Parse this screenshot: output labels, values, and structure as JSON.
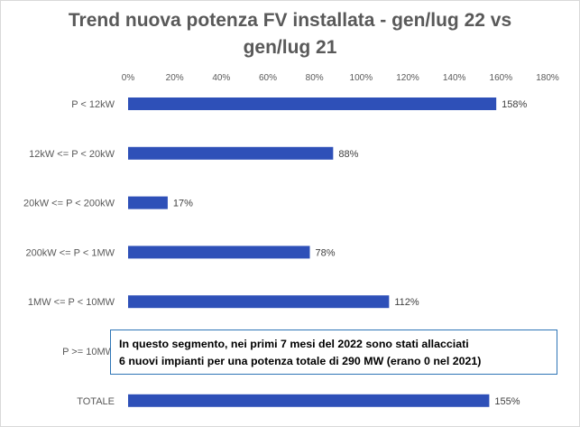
{
  "chart_data": {
    "type": "bar",
    "orientation": "horizontal",
    "title_lines": [
      "Trend nuova potenza FV installata - gen/lug 22 vs",
      "gen/lug 21"
    ],
    "categories": [
      "P < 12kW",
      "12kW <= P < 20kW",
      "20kW <= P < 200kW",
      "200kW <= P < 1MW",
      "1MW <= P < 10MW",
      "P >= 10MW",
      "TOTALE"
    ],
    "values": [
      158,
      88,
      17,
      78,
      112,
      null,
      155
    ],
    "value_labels": [
      "158%",
      "88%",
      "17%",
      "78%",
      "112%",
      "",
      "155%"
    ],
    "xlim": [
      0,
      180
    ],
    "x_ticks": [
      "0%",
      "20%",
      "40%",
      "60%",
      "80%",
      "100%",
      "120%",
      "140%",
      "160%",
      "180%"
    ],
    "x_axis_position": "top",
    "grid": false,
    "bar_color": "#2e50b8",
    "annotation_lines": [
      "In questo segmento, nei primi 7 mesi del 2022 sono stati allacciati",
      "6 nuovi impianti per una potenza totale di 290 MW (erano 0 nel 2021)"
    ]
  }
}
